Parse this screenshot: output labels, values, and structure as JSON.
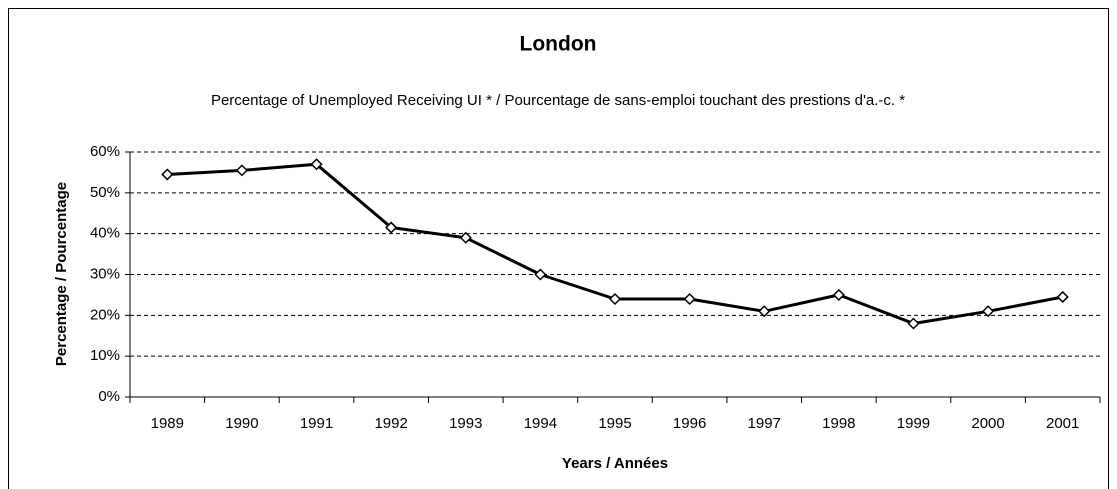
{
  "chart_data": {
    "type": "line",
    "title": "London",
    "subtitle": "Percentage of Unemployed Receiving UI * / Pourcentage de sans-emploi touchant des prestions d'a.-c. *",
    "y_label": "Percentage / Pourcentage",
    "x_label": "Years / Années",
    "categories": [
      "1989",
      "1990",
      "1991",
      "1992",
      "1993",
      "1994",
      "1995",
      "1996",
      "1997",
      "1998",
      "1999",
      "2000",
      "2001"
    ],
    "values": [
      54.5,
      55.5,
      57,
      41.5,
      39,
      30,
      24,
      24,
      21,
      25,
      18,
      21,
      24.5
    ],
    "color": "#000000",
    "ylim": [
      0,
      60
    ],
    "yticks": [
      {
        "value": 0,
        "label": "0%"
      },
      {
        "value": 10,
        "label": "10%"
      },
      {
        "value": 20,
        "label": "20%"
      },
      {
        "value": 30,
        "label": "30%"
      },
      {
        "value": 40,
        "label": "40%"
      },
      {
        "value": 50,
        "label": "50%"
      },
      {
        "value": 60,
        "label": "60%"
      }
    ],
    "grid": true
  }
}
